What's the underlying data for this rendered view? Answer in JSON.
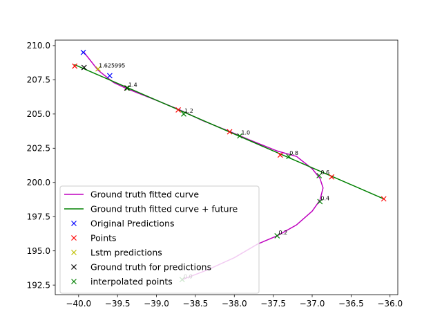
{
  "chart_data": {
    "type": "line",
    "title": "",
    "xlabel": "",
    "ylabel": "",
    "xlim": [
      -40.3,
      -35.9
    ],
    "ylim": [
      191.8,
      210.4
    ],
    "x_ticks": [
      -40.0,
      -39.5,
      -39.0,
      -38.5,
      -38.0,
      -37.5,
      -37.0,
      -36.5,
      -36.0
    ],
    "x_tick_labels": [
      "−40.0",
      "−39.5",
      "−39.0",
      "−38.5",
      "−38.0",
      "−37.5",
      "−37.0",
      "−36.5",
      "−36.0"
    ],
    "y_ticks": [
      192.5,
      195.0,
      197.5,
      200.0,
      202.5,
      205.0,
      207.5,
      210.0
    ],
    "y_tick_labels": [
      "192.5",
      "195.0",
      "197.5",
      "200.0",
      "202.5",
      "205.0",
      "207.5",
      "210.0"
    ],
    "grid": false,
    "legend_position": "lower-left",
    "series": [
      {
        "name": "Ground truth fitted curve",
        "kind": "line",
        "color": "#bf00bf",
        "x": [
          -38.67,
          -38.35,
          -38.0,
          -37.7,
          -37.45,
          -37.2,
          -37.0,
          -36.9,
          -36.86,
          -36.9,
          -37.0,
          -37.2,
          -37.45,
          -37.8,
          -38.05,
          -38.4,
          -38.7,
          -39.0,
          -39.4,
          -39.55,
          -39.75,
          -39.93
        ],
        "y": [
          192.9,
          193.6,
          194.5,
          195.5,
          196.1,
          196.9,
          197.9,
          198.7,
          199.6,
          200.3,
          201.0,
          201.9,
          202.3,
          203.1,
          203.7,
          204.5,
          205.3,
          206.0,
          206.9,
          207.3,
          208.2,
          209.5
        ]
      },
      {
        "name": "Ground truth fitted curve + future",
        "kind": "line",
        "color": "#008000",
        "x": [
          -40.05,
          -36.08
        ],
        "y": [
          208.6,
          198.8
        ]
      },
      {
        "name": "Original Predictions",
        "kind": "marker",
        "color": "#0000ff",
        "x": [
          -39.94,
          -39.6
        ],
        "y": [
          209.5,
          207.8
        ]
      },
      {
        "name": "Points",
        "kind": "marker",
        "color": "#ff0000",
        "x": [
          -40.05,
          -39.38,
          -38.72,
          -38.06,
          -37.41,
          -36.75,
          -36.08
        ],
        "y": [
          208.5,
          206.9,
          205.3,
          203.7,
          202.0,
          200.4,
          198.8
        ]
      },
      {
        "name": "Lstm predictions",
        "kind": "marker",
        "color": "#bfbf00",
        "x": [
          -39.75
        ],
        "y": [
          208.3
        ]
      },
      {
        "name": "Ground truth for predictions",
        "kind": "marker",
        "color": "#000000",
        "x": [
          -39.93,
          -39.38
        ],
        "y": [
          208.4,
          206.9
        ]
      },
      {
        "name": "interpolated points",
        "kind": "marker",
        "color": "#008000",
        "x": [
          -38.67,
          -37.45,
          -36.9,
          -36.91,
          -37.3,
          -37.93,
          -38.65,
          -39.37
        ],
        "y": [
          192.9,
          196.1,
          198.6,
          200.5,
          201.9,
          203.4,
          205.0,
          206.9
        ]
      }
    ],
    "annotations": [
      {
        "text": "1.625995",
        "x": -39.74,
        "y": 208.4
      },
      {
        "text": "1.4",
        "x": -39.36,
        "y": 207.0
      },
      {
        "text": "1.2",
        "x": -38.64,
        "y": 205.1
      },
      {
        "text": "1.0",
        "x": -37.91,
        "y": 203.5
      },
      {
        "text": "0.8",
        "x": -37.29,
        "y": 202.0
      },
      {
        "text": "0.6",
        "x": -36.89,
        "y": 200.6
      },
      {
        "text": "0.4",
        "x": -36.89,
        "y": 198.7
      },
      {
        "text": "0.2",
        "x": -37.43,
        "y": 196.2
      },
      {
        "text": "0.0",
        "x": -38.65,
        "y": 193.0
      }
    ]
  }
}
